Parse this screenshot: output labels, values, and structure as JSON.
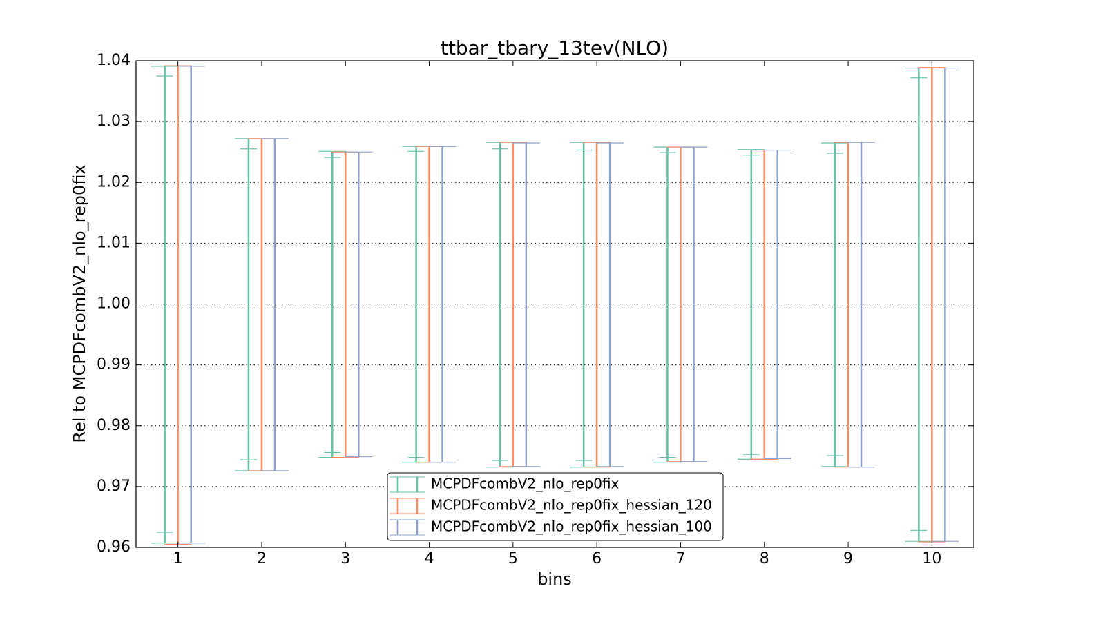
{
  "chart_data": {
    "type": "errorbar",
    "title": "ttbar_tbary_13tev(NLO)",
    "xlabel": "bins",
    "ylabel": "Rel to MCPDFcombV2_nlo_rep0fix",
    "x": [
      1,
      2,
      3,
      4,
      5,
      6,
      7,
      8,
      9,
      10
    ],
    "xlim": [
      0.5,
      10.5
    ],
    "xticks": [
      1,
      2,
      3,
      4,
      5,
      6,
      7,
      8,
      9,
      10
    ],
    "ylim": [
      0.96,
      1.04
    ],
    "yticks": [
      0.96,
      0.97,
      0.98,
      0.99,
      {
        "value": 1.0,
        "label": "1.00"
      },
      1.01,
      1.02,
      1.03,
      1.04
    ],
    "grid": true,
    "legend": "lower center",
    "series": [
      {
        "name": "MCPDFcombV2_nlo_rep0fix",
        "color": "#66c2a5",
        "low": [
          0.9607,
          0.9726,
          0.9748,
          0.974,
          0.9732,
          0.9732,
          0.974,
          0.9745,
          0.9733,
          0.961
        ],
        "high": [
          1.0391,
          1.0272,
          1.0251,
          1.0259,
          1.0266,
          1.0266,
          1.0258,
          1.0254,
          1.0265,
          1.0388
        ],
        "inner_low": [
          0.9625,
          0.9744,
          0.9756,
          0.9748,
          0.9743,
          0.9743,
          0.9748,
          0.9753,
          0.9751,
          0.9628
        ],
        "inner_high": [
          1.0375,
          1.0255,
          1.0241,
          1.0251,
          1.0255,
          1.0253,
          1.0249,
          1.0245,
          1.0248,
          1.0372
        ]
      },
      {
        "name": "MCPDFcombV2_nlo_rep0fix_hessian_120",
        "color": "#fc8d62",
        "low": [
          0.9605,
          0.9726,
          0.9748,
          0.974,
          0.9733,
          0.9732,
          0.9741,
          0.9745,
          0.9732,
          0.9609
        ],
        "high": [
          1.0392,
          1.0272,
          1.025,
          1.0259,
          1.0266,
          1.0266,
          1.0258,
          1.0253,
          1.0266,
          1.0389
        ]
      },
      {
        "name": "MCPDFcombV2_nlo_rep0fix_hessian_100",
        "color": "#8da0cb",
        "low": [
          0.9607,
          0.9726,
          0.9749,
          0.974,
          0.9733,
          0.9733,
          0.9741,
          0.9746,
          0.9732,
          0.961
        ],
        "high": [
          1.0391,
          1.0272,
          1.025,
          1.0259,
          1.0265,
          1.0265,
          1.0258,
          1.0253,
          1.0266,
          1.0388
        ]
      }
    ]
  }
}
